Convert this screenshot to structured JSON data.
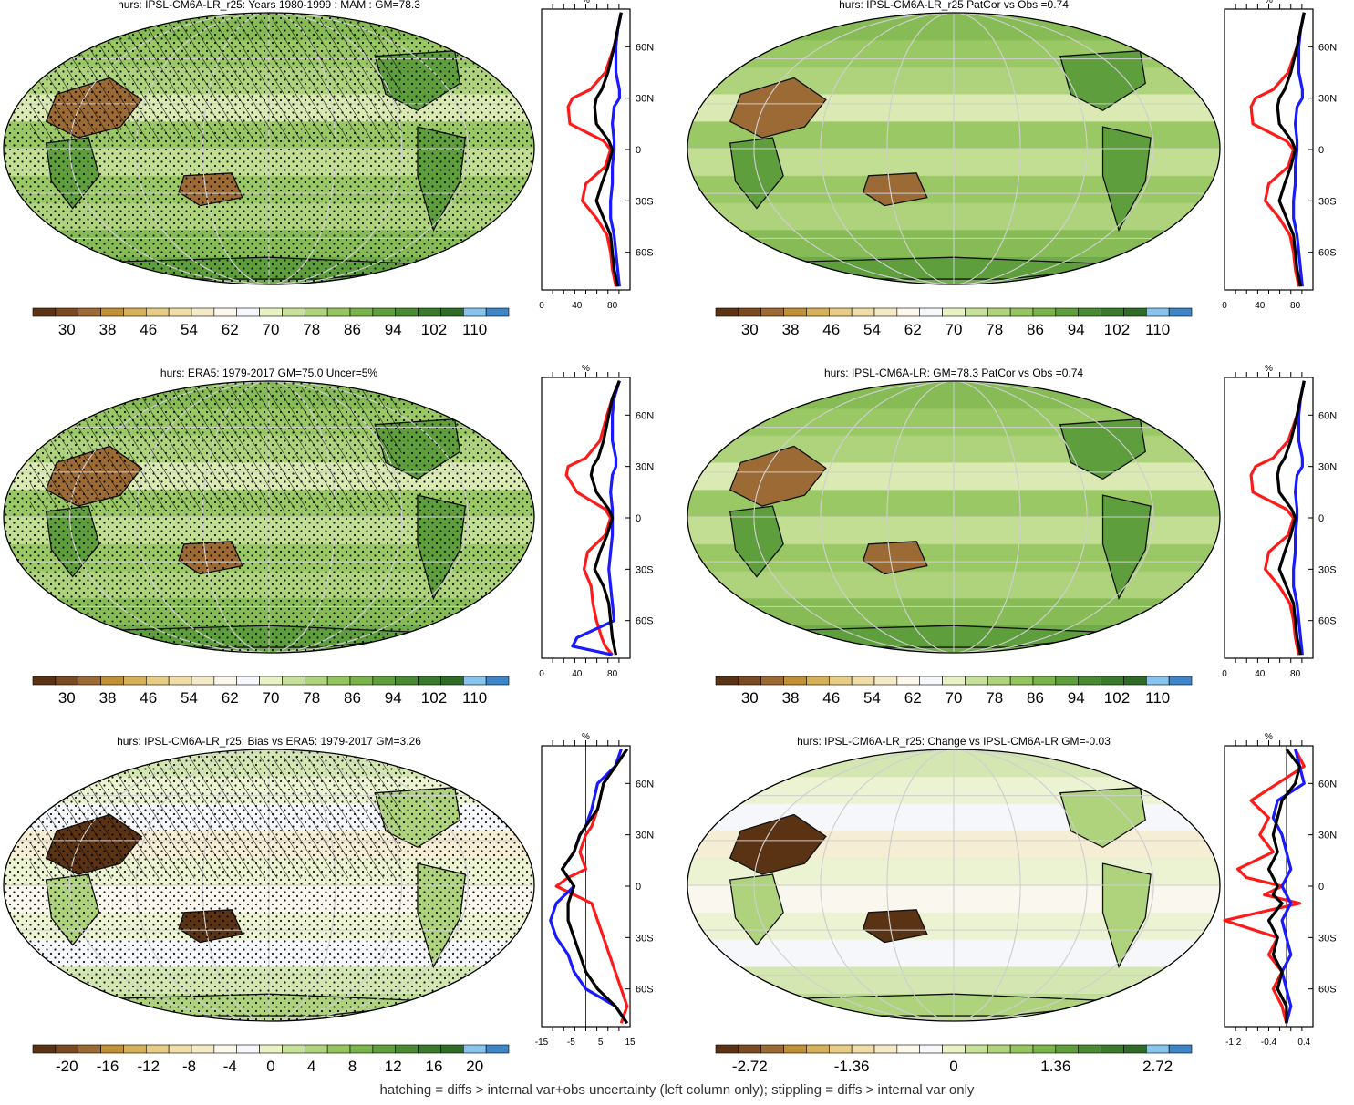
{
  "footer": "hatching = diffs > internal var+obs uncertainty (left column only); stippling = diffs > internal var only",
  "palettes": {
    "humidity": [
      "#5a3214",
      "#7a4a22",
      "#9c6a34",
      "#bf9035",
      "#d7b05a",
      "#e6cc85",
      "#efdca6",
      "#f5eac8",
      "#fbf7ea",
      "#f6f7fb",
      "#e8f2c4",
      "#c8e19a",
      "#aed37c",
      "#93c45d",
      "#79b34a",
      "#5e9e3c",
      "#4a8a33",
      "#3a7a2c",
      "#2f6b27",
      "#87c3eb",
      "#3f86c9"
    ],
    "diverging": [
      "#5a3214",
      "#7a4a22",
      "#9c6a34",
      "#bf9035",
      "#d7b05a",
      "#e6cc85",
      "#efdca6",
      "#f5eac8",
      "#fbf7ea",
      "#f6f7fb",
      "#e8f2c4",
      "#c8e19a",
      "#aed37c",
      "#93c45d",
      "#79b34a",
      "#5e9e3c",
      "#4a8a33",
      "#3a7a2c",
      "#2f6b27",
      "#87c3eb",
      "#3f86c9"
    ]
  },
  "line_colors": {
    "red": "#ff1a1a",
    "blue": "#1a1aff",
    "black": "#000000"
  },
  "chart_data": [
    {
      "type": "heatmap",
      "title": "hurs: IPSL-CM6A-LR_r25: Years 1980-1999 : MAM : GM=78.3",
      "colorbar_labels": [
        "30",
        "38",
        "46",
        "54",
        "62",
        "70",
        "78",
        "86",
        "94",
        "102",
        "110"
      ],
      "palette": "humidity",
      "mean_tone": 12,
      "overlay": "hatch_stipple",
      "zonal_profile": {
        "xlabel": "%",
        "xticks": [
          "0",
          "40",
          "80"
        ],
        "xlim": [
          0,
          100
        ],
        "yticks": [
          "60N",
          "30N",
          "0",
          "30S",
          "60S"
        ],
        "lat": [
          80,
          70,
          60,
          45,
          35,
          30,
          25,
          15,
          5,
          0,
          -10,
          -20,
          -30,
          -40,
          -50,
          -60,
          -70,
          -80
        ],
        "series": [
          {
            "color": "red",
            "values": [
              90,
              86,
              82,
              72,
              55,
              35,
              30,
              32,
              70,
              78,
              72,
              50,
              46,
              62,
              74,
              78,
              80,
              84
            ]
          },
          {
            "color": "blue",
            "values": [
              90,
              86,
              84,
              84,
              88,
              88,
              82,
              80,
              82,
              82,
              80,
              80,
              78,
              78,
              82,
              84,
              86,
              88
            ]
          },
          {
            "color": "black",
            "values": [
              90,
              86,
              82,
              75,
              68,
              62,
              60,
              62,
              76,
              80,
              75,
              68,
              62,
              70,
              78,
              80,
              82,
              86
            ]
          }
        ]
      }
    },
    {
      "type": "heatmap",
      "title": "hurs: IPSL-CM6A-LR_r25 PatCor vs Obs =0.74",
      "colorbar_labels": [
        "30",
        "38",
        "46",
        "54",
        "62",
        "70",
        "78",
        "86",
        "94",
        "102",
        "110"
      ],
      "palette": "humidity",
      "mean_tone": 12,
      "overlay": "none",
      "zonal_profile": {
        "xlabel": "%",
        "xticks": [
          "0",
          "40",
          "80"
        ],
        "xlim": [
          0,
          100
        ],
        "yticks": [
          "60N",
          "30N",
          "0",
          "30S",
          "60S"
        ],
        "lat": [
          80,
          70,
          60,
          45,
          35,
          30,
          25,
          15,
          5,
          0,
          -10,
          -20,
          -30,
          -40,
          -50,
          -60,
          -70,
          -80
        ],
        "series": [
          {
            "color": "red",
            "values": [
              90,
              86,
              82,
              72,
              55,
              35,
              30,
              32,
              70,
              78,
              72,
              50,
              46,
              62,
              74,
              78,
              80,
              84
            ]
          },
          {
            "color": "blue",
            "values": [
              90,
              86,
              84,
              84,
              88,
              88,
              82,
              80,
              82,
              82,
              80,
              80,
              78,
              78,
              82,
              84,
              86,
              88
            ]
          },
          {
            "color": "black",
            "values": [
              90,
              86,
              82,
              75,
              68,
              62,
              60,
              62,
              76,
              80,
              75,
              68,
              62,
              70,
              78,
              80,
              82,
              86
            ]
          }
        ]
      }
    },
    {
      "type": "heatmap",
      "title": "hurs: ERA5: 1979-2017 GM=75.0 Uncer=5%",
      "colorbar_labels": [
        "30",
        "38",
        "46",
        "54",
        "62",
        "70",
        "78",
        "86",
        "94",
        "102",
        "110"
      ],
      "palette": "humidity",
      "mean_tone": 12,
      "overlay": "hatch_stipple",
      "zonal_profile": {
        "xlabel": "%",
        "xticks": [
          "0",
          "40",
          "80"
        ],
        "xlim": [
          0,
          100
        ],
        "yticks": [
          "60N",
          "30N",
          "0",
          "30S",
          "60S"
        ],
        "lat": [
          80,
          70,
          60,
          45,
          35,
          30,
          25,
          15,
          5,
          0,
          -10,
          -20,
          -30,
          -40,
          -50,
          -60,
          -70,
          -75,
          -80
        ],
        "series": [
          {
            "color": "red",
            "values": [
              88,
              80,
              74,
              66,
              50,
              30,
              28,
              40,
              72,
              78,
              72,
              52,
              48,
              56,
              58,
              62,
              68,
              72,
              80
            ]
          },
          {
            "color": "blue",
            "values": [
              88,
              82,
              80,
              80,
              84,
              84,
              80,
              78,
              80,
              80,
              80,
              78,
              76,
              78,
              80,
              82,
              40,
              35,
              80
            ]
          },
          {
            "color": "black",
            "values": [
              88,
              80,
              76,
              70,
              64,
              58,
              56,
              62,
              76,
              80,
              74,
              66,
              60,
              70,
              76,
              78,
              80,
              82,
              84
            ]
          }
        ]
      }
    },
    {
      "type": "heatmap",
      "title": "hurs: IPSL-CM6A-LR: GM=78.3 PatCor vs Obs =0.74",
      "colorbar_labels": [
        "30",
        "38",
        "46",
        "54",
        "62",
        "70",
        "78",
        "86",
        "94",
        "102",
        "110"
      ],
      "palette": "humidity",
      "mean_tone": 12,
      "overlay": "none",
      "zonal_profile": {
        "xlabel": "%",
        "xticks": [
          "0",
          "40",
          "80"
        ],
        "xlim": [
          0,
          100
        ],
        "yticks": [
          "60N",
          "30N",
          "0",
          "30S",
          "60S"
        ],
        "lat": [
          80,
          70,
          60,
          45,
          35,
          30,
          25,
          15,
          5,
          0,
          -10,
          -20,
          -30,
          -40,
          -50,
          -60,
          -70,
          -80
        ],
        "series": [
          {
            "color": "red",
            "values": [
              90,
              86,
              82,
              72,
              55,
              35,
              30,
              32,
              70,
              78,
              72,
              50,
              46,
              62,
              74,
              78,
              80,
              84
            ]
          },
          {
            "color": "blue",
            "values": [
              90,
              86,
              84,
              84,
              88,
              88,
              82,
              80,
              82,
              82,
              80,
              80,
              78,
              78,
              82,
              84,
              86,
              88
            ]
          },
          {
            "color": "black",
            "values": [
              90,
              86,
              82,
              75,
              68,
              62,
              60,
              62,
              76,
              80,
              75,
              68,
              62,
              70,
              78,
              80,
              82,
              86
            ]
          }
        ]
      }
    },
    {
      "type": "heatmap",
      "title": "hurs: IPSL-CM6A-LR_r25: Bias vs ERA5: 1979-2017 GM=3.26",
      "colorbar_labels": [
        "-20",
        "-16",
        "-12",
        "-8",
        "-4",
        "0",
        "4",
        "8",
        "12",
        "16",
        "20"
      ],
      "palette": "diverging",
      "mean_tone": 9,
      "overlay": "hatch_stipple",
      "zonal_profile": {
        "xlabel": "%",
        "xticks": [
          "-15",
          "-5",
          "5",
          "15"
        ],
        "xlim": [
          -15,
          15
        ],
        "yticks": [
          "60N",
          "30N",
          "0",
          "30S",
          "60S"
        ],
        "lat": [
          80,
          70,
          60,
          45,
          35,
          30,
          20,
          10,
          5,
          0,
          -10,
          -20,
          -30,
          -40,
          -50,
          -60,
          -70,
          -80
        ],
        "series": [
          {
            "color": "red",
            "values": [
              14,
              10,
              6,
              4,
              2,
              0,
              -2,
              0,
              -6,
              -10,
              2,
              4,
              6,
              8,
              10,
              12,
              14,
              12
            ]
          },
          {
            "color": "blue",
            "values": [
              12,
              10,
              4,
              2,
              0,
              -2,
              -4,
              -8,
              -6,
              -4,
              -10,
              -12,
              -10,
              -6,
              -4,
              0,
              10,
              14
            ]
          },
          {
            "color": "black",
            "values": [
              14,
              10,
              6,
              4,
              0,
              -2,
              -4,
              -8,
              -6,
              -4,
              -6,
              -6,
              -4,
              -2,
              0,
              4,
              10,
              14
            ]
          }
        ]
      }
    },
    {
      "type": "heatmap",
      "title": "hurs: IPSL-CM6A-LR_r25: Change vs IPSL-CM6A-LR GM=-0.03",
      "colorbar_labels": [
        "-2.72",
        "-1.36",
        "0",
        "1.36",
        "2.72"
      ],
      "palette": "diverging",
      "mean_tone": 9,
      "overlay": "none",
      "zonal_profile": {
        "xlabel": "%",
        "xticks": [
          "-1.2",
          "-0.4",
          "0.4"
        ],
        "xlim": [
          -1.4,
          0.6
        ],
        "yticks": [
          "60N",
          "30N",
          "0",
          "30S",
          "60S"
        ],
        "lat": [
          80,
          70,
          60,
          50,
          40,
          30,
          20,
          10,
          5,
          0,
          -5,
          -10,
          -20,
          -30,
          -40,
          -50,
          -60,
          -70,
          -80
        ],
        "series": [
          {
            "color": "red",
            "values": [
              0.2,
              0.4,
              -0.2,
              -0.8,
              -0.4,
              -0.6,
              -0.3,
              -1.1,
              -0.9,
              -0.1,
              -0.5,
              0.3,
              -1.4,
              -0.2,
              -0.4,
              -0.1,
              -0.3,
              -0.1,
              0.0
            ]
          },
          {
            "color": "blue",
            "values": [
              0.2,
              0.3,
              0.4,
              -0.2,
              -0.3,
              -0.1,
              0.0,
              0.1,
              0.0,
              -0.1,
              0.0,
              0.1,
              -0.1,
              0.0,
              0.1,
              -0.1,
              0.0,
              0.1,
              0.0
            ]
          },
          {
            "color": "black",
            "values": [
              0.0,
              0.3,
              0.2,
              -0.1,
              -0.2,
              -0.3,
              -0.2,
              -0.4,
              -0.3,
              -0.2,
              -0.3,
              -0.1,
              -0.4,
              -0.2,
              -0.3,
              -0.1,
              -0.2,
              0.0,
              0.0
            ]
          }
        ]
      }
    }
  ]
}
